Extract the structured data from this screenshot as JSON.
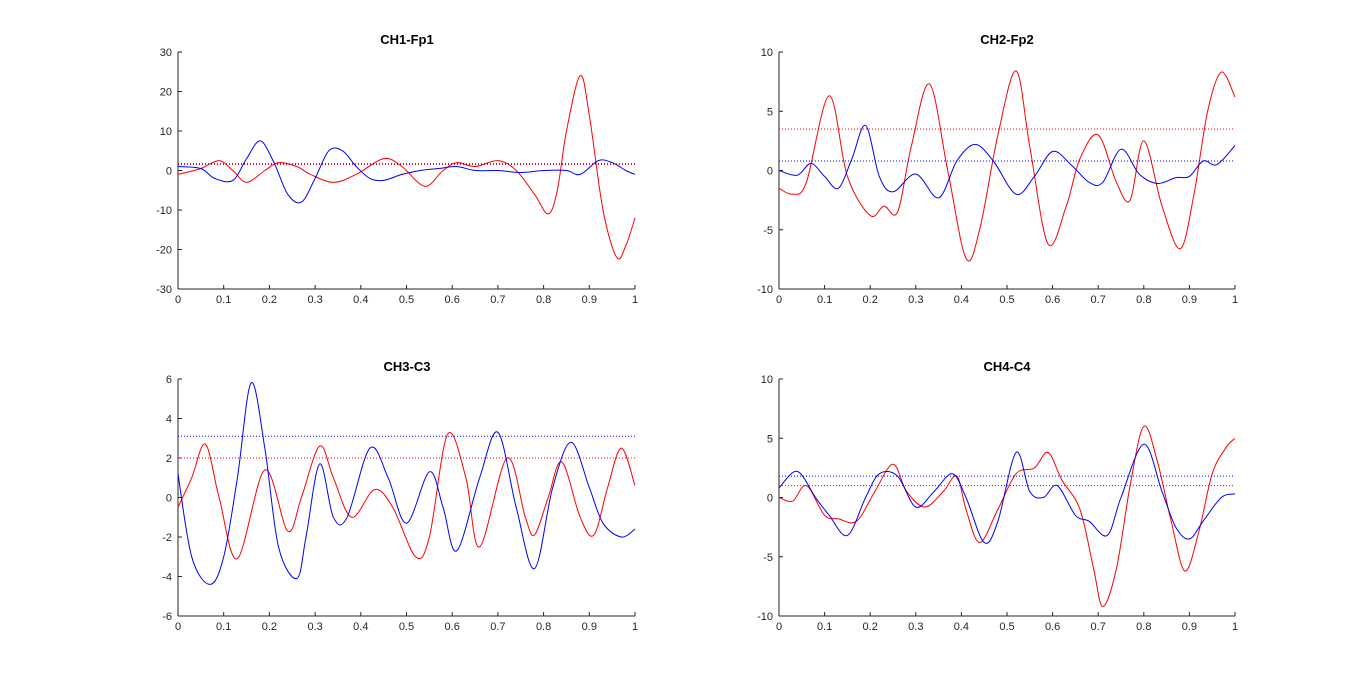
{
  "colors": {
    "red": "#ff0000",
    "blue": "#0000ff",
    "axis": "#262626",
    "background": "#ffffff"
  },
  "chart_data": [
    {
      "type": "line",
      "title": "CH1-Fp1",
      "xlabel": "",
      "ylabel": "",
      "xlim": [
        0,
        1
      ],
      "ylim": [
        -30,
        30
      ],
      "xticks": [
        0,
        0.1,
        0.2,
        0.3,
        0.4,
        0.5,
        0.6,
        0.7,
        0.8,
        0.9,
        1
      ],
      "xtick_labels": [
        "0",
        "0.1",
        "0.2",
        "0.3",
        "0.4",
        "0.5",
        "0.6",
        "0.7",
        "0.8",
        "0.9",
        "1"
      ],
      "yticks": [
        -30,
        -20,
        -10,
        0,
        10,
        20,
        30
      ],
      "ytick_labels": [
        "-30",
        "-20",
        "-10",
        "0",
        "10",
        "20",
        "30"
      ],
      "grid": false,
      "series": [
        {
          "color": "red",
          "style": "solid",
          "x": [
            0,
            0.05,
            0.09,
            0.12,
            0.15,
            0.19,
            0.22,
            0.26,
            0.29,
            0.34,
            0.39,
            0.45,
            0.49,
            0.54,
            0.58,
            0.61,
            0.65,
            0.7,
            0.74,
            0.78,
            0.81,
            0.83,
            0.85,
            0.88,
            0.9,
            0.93,
            0.96,
            0.98,
            1
          ],
          "y": [
            -1,
            0.5,
            2.5,
            0,
            -3,
            0,
            2,
            1,
            -1,
            -3,
            -1,
            3,
            1,
            -4,
            0,
            2,
            1,
            2.5,
            0,
            -6,
            -11,
            -5,
            10,
            24,
            14,
            -10,
            -22,
            -19,
            -12
          ]
        },
        {
          "color": "blue",
          "style": "solid",
          "x": [
            0,
            0.05,
            0.08,
            0.12,
            0.15,
            0.18,
            0.21,
            0.24,
            0.27,
            0.3,
            0.33,
            0.36,
            0.39,
            0.42,
            0.45,
            0.49,
            0.53,
            0.57,
            0.61,
            0.65,
            0.7,
            0.75,
            0.8,
            0.85,
            0.88,
            0.92,
            0.95,
            0.98,
            1
          ],
          "y": [
            1,
            0.5,
            -2,
            -2.5,
            3,
            7.5,
            2,
            -6,
            -8,
            -2,
            5,
            5,
            1,
            -2,
            -2.5,
            -1,
            0,
            0.5,
            1,
            0,
            0,
            -0.5,
            0,
            0,
            -1,
            2.5,
            2,
            0,
            -1
          ]
        },
        {
          "color": "red",
          "style": "dotted",
          "x": [
            0,
            1
          ],
          "y": [
            1.5,
            1.5
          ]
        },
        {
          "color": "blue",
          "style": "dotted",
          "x": [
            0,
            1
          ],
          "y": [
            1.7,
            1.7
          ]
        }
      ]
    },
    {
      "type": "line",
      "title": "CH2-Fp2",
      "xlabel": "",
      "ylabel": "",
      "xlim": [
        0,
        1
      ],
      "ylim": [
        -10,
        10
      ],
      "xticks": [
        0,
        0.1,
        0.2,
        0.3,
        0.4,
        0.5,
        0.6,
        0.7,
        0.8,
        0.9,
        1
      ],
      "xtick_labels": [
        "0",
        "0.1",
        "0.2",
        "0.3",
        "0.4",
        "0.5",
        "0.6",
        "0.7",
        "0.8",
        "0.9",
        "1"
      ],
      "yticks": [
        -10,
        -5,
        0,
        5,
        10
      ],
      "ytick_labels": [
        "-10",
        "-5",
        "0",
        "5",
        "10"
      ],
      "grid": false,
      "series": [
        {
          "color": "red",
          "style": "solid",
          "x": [
            0,
            0.03,
            0.06,
            0.11,
            0.15,
            0.2,
            0.23,
            0.26,
            0.29,
            0.33,
            0.37,
            0.41,
            0.44,
            0.48,
            0.52,
            0.55,
            0.59,
            0.63,
            0.66,
            0.7,
            0.74,
            0.77,
            0.8,
            0.84,
            0.88,
            0.91,
            0.94,
            0.97,
            1
          ],
          "y": [
            -1.5,
            -2,
            -1,
            6.3,
            -0.5,
            -3.8,
            -3,
            -3.5,
            2,
            7.3,
            0,
            -7.4,
            -5,
            3,
            8.4,
            2,
            -6.2,
            -3,
            1,
            3,
            -1,
            -2.5,
            2.5,
            -3,
            -6.6,
            -2,
            5,
            8.3,
            6.2
          ]
        },
        {
          "color": "blue",
          "style": "solid",
          "x": [
            0,
            0.04,
            0.07,
            0.1,
            0.13,
            0.16,
            0.19,
            0.22,
            0.25,
            0.3,
            0.35,
            0.39,
            0.43,
            0.47,
            0.52,
            0.56,
            0.6,
            0.64,
            0.68,
            0.71,
            0.75,
            0.79,
            0.83,
            0.87,
            0.9,
            0.93,
            0.96,
            1
          ],
          "y": [
            0,
            -0.4,
            0.6,
            -0.5,
            -1.5,
            1,
            3.8,
            -0.5,
            -1.8,
            -0.3,
            -2.3,
            0.8,
            2.2,
            0.8,
            -2,
            -0.5,
            1.6,
            0.5,
            -1,
            -1,
            1.8,
            -0.3,
            -1.1,
            -0.6,
            -0.5,
            0.8,
            0.5,
            2.1
          ]
        },
        {
          "color": "red",
          "style": "dotted",
          "x": [
            0,
            1
          ],
          "y": [
            3.5,
            3.5
          ]
        },
        {
          "color": "blue",
          "style": "dotted",
          "x": [
            0,
            1
          ],
          "y": [
            0.8,
            0.8
          ]
        }
      ]
    },
    {
      "type": "line",
      "title": "CH3-C3",
      "xlabel": "",
      "ylabel": "",
      "xlim": [
        0,
        1
      ],
      "ylim": [
        -6,
        6
      ],
      "xticks": [
        0,
        0.1,
        0.2,
        0.3,
        0.4,
        0.5,
        0.6,
        0.7,
        0.8,
        0.9,
        1
      ],
      "xtick_labels": [
        "0",
        "0.1",
        "0.2",
        "0.3",
        "0.4",
        "0.5",
        "0.6",
        "0.7",
        "0.8",
        "0.9",
        "1"
      ],
      "yticks": [
        -6,
        -4,
        -2,
        0,
        2,
        4,
        6
      ],
      "ytick_labels": [
        "-6",
        "-4",
        "-2",
        "0",
        "2",
        "4",
        "6"
      ],
      "grid": false,
      "series": [
        {
          "color": "red",
          "style": "solid",
          "x": [
            0,
            0.03,
            0.06,
            0.09,
            0.13,
            0.19,
            0.24,
            0.27,
            0.31,
            0.34,
            0.38,
            0.43,
            0.47,
            0.52,
            0.55,
            0.59,
            0.63,
            0.66,
            0.72,
            0.76,
            0.78,
            0.81,
            0.84,
            0.88,
            0.91,
            0.94,
            0.97,
            1
          ],
          "y": [
            -0.5,
            1,
            2.7,
            0,
            -3.1,
            1.4,
            -1.7,
            0,
            2.6,
            1,
            -1,
            0.4,
            -0.5,
            -3,
            -2,
            3.2,
            1,
            -2.5,
            2,
            -1,
            -1.9,
            0,
            1.8,
            -1,
            -1.9,
            0.5,
            2.5,
            0.6
          ]
        },
        {
          "color": "blue",
          "style": "solid",
          "x": [
            0,
            0.03,
            0.07,
            0.1,
            0.13,
            0.16,
            0.19,
            0.22,
            0.26,
            0.28,
            0.31,
            0.34,
            0.37,
            0.42,
            0.46,
            0.5,
            0.55,
            0.58,
            0.61,
            0.66,
            0.7,
            0.74,
            0.78,
            0.82,
            0.86,
            0.9,
            0.93,
            0.97,
            1
          ],
          "y": [
            1.2,
            -3,
            -4.4,
            -3,
            1,
            5.8,
            2.5,
            -2.5,
            -4.1,
            -2,
            1.7,
            -1,
            -1,
            2.5,
            1,
            -1.3,
            1.3,
            -0.5,
            -2.7,
            1,
            3.3,
            -0.5,
            -3.6,
            0.5,
            2.8,
            0.5,
            -1.3,
            -2,
            -1.6
          ]
        },
        {
          "color": "red",
          "style": "dotted",
          "x": [
            0,
            1
          ],
          "y": [
            2,
            2
          ]
        },
        {
          "color": "blue",
          "style": "dotted",
          "x": [
            0,
            1
          ],
          "y": [
            3.1,
            3.1
          ]
        }
      ]
    },
    {
      "type": "line",
      "title": "CH4-C4",
      "xlabel": "",
      "ylabel": "",
      "xlim": [
        0,
        1
      ],
      "ylim": [
        -10,
        10
      ],
      "xticks": [
        0,
        0.1,
        0.2,
        0.3,
        0.4,
        0.5,
        0.6,
        0.7,
        0.8,
        0.9,
        1
      ],
      "xtick_labels": [
        "0",
        "0.1",
        "0.2",
        "0.3",
        "0.4",
        "0.5",
        "0.6",
        "0.7",
        "0.8",
        "0.9",
        "1"
      ],
      "yticks": [
        -10,
        -5,
        0,
        5,
        10
      ],
      "ytick_labels": [
        "-10",
        "-5",
        "0",
        "5",
        "10"
      ],
      "grid": false,
      "series": [
        {
          "color": "red",
          "style": "solid",
          "x": [
            0,
            0.03,
            0.06,
            0.1,
            0.13,
            0.17,
            0.21,
            0.25,
            0.28,
            0.32,
            0.36,
            0.39,
            0.41,
            0.44,
            0.48,
            0.52,
            0.56,
            0.59,
            0.62,
            0.66,
            0.69,
            0.71,
            0.74,
            0.77,
            0.8,
            0.83,
            0.86,
            0.89,
            0.92,
            0.95,
            0.98,
            1
          ],
          "y": [
            0,
            -0.3,
            1,
            -1.5,
            -1.8,
            -2,
            0.5,
            2.8,
            0.5,
            -0.8,
            0.5,
            1.8,
            -1,
            -3.8,
            -1,
            2,
            2.5,
            3.8,
            1.5,
            -1,
            -6,
            -9.2,
            -6,
            1,
            6,
            3,
            -2,
            -6.2,
            -3,
            2,
            4.2,
            5
          ]
        },
        {
          "color": "blue",
          "style": "solid",
          "x": [
            0,
            0.04,
            0.08,
            0.11,
            0.15,
            0.19,
            0.22,
            0.26,
            0.3,
            0.34,
            0.38,
            0.41,
            0.45,
            0.48,
            0.52,
            0.55,
            0.58,
            0.61,
            0.65,
            0.68,
            0.72,
            0.75,
            0.8,
            0.84,
            0.87,
            0.9,
            0.93,
            0.97,
            1
          ],
          "y": [
            0.8,
            2.2,
            0,
            -1.5,
            -3.2,
            0,
            2,
            1.8,
            -0.8,
            0.5,
            2,
            0,
            -3.8,
            -2,
            3.8,
            0.5,
            0,
            1,
            -1.5,
            -2,
            -3.2,
            0,
            4.5,
            0.5,
            -2.5,
            -3.5,
            -2,
            0,
            0.3
          ]
        },
        {
          "color": "red",
          "style": "dotted",
          "x": [
            0,
            1
          ],
          "y": [
            1,
            1
          ]
        },
        {
          "color": "blue",
          "style": "dotted",
          "x": [
            0,
            1
          ],
          "y": [
            1.8,
            1.8
          ]
        }
      ]
    }
  ]
}
